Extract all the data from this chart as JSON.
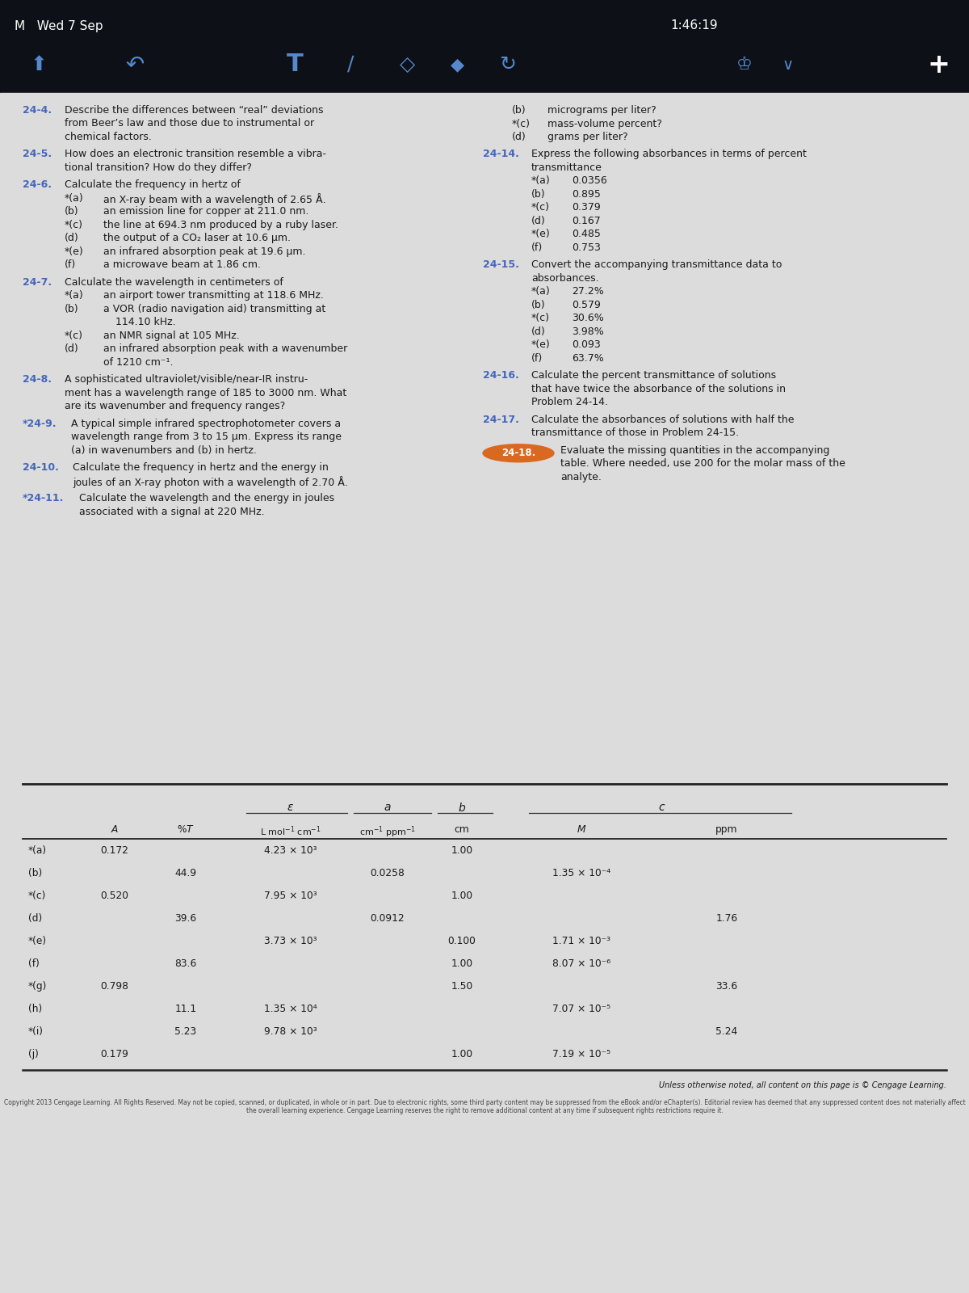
{
  "bg_top": "#0d1117",
  "bg_page": "#dcdcdc",
  "text_color": "#1a1a1a",
  "link_color": "#4466bb",
  "highlight_color": "#d96820",
  "table_rows": [
    {
      "label": "*(a)",
      "A": "0.172",
      "pT": "",
      "eps": "4.23 × 10³",
      "a": "",
      "b": "1.00",
      "M": "",
      "ppm": ""
    },
    {
      "label": "(b)",
      "A": "",
      "pT": "44.9",
      "eps": "",
      "a": "0.0258",
      "b": "",
      "M": "1.35 × 10⁻⁴",
      "ppm": ""
    },
    {
      "label": "*(c)",
      "A": "0.520",
      "pT": "",
      "eps": "7.95 × 10³",
      "a": "",
      "b": "1.00",
      "M": "",
      "ppm": ""
    },
    {
      "label": "(d)",
      "A": "",
      "pT": "39.6",
      "eps": "",
      "a": "0.0912",
      "b": "",
      "M": "",
      "ppm": "1.76"
    },
    {
      "label": "*(e)",
      "A": "",
      "pT": "",
      "eps": "3.73 × 10³",
      "a": "",
      "b": "0.100",
      "M": "1.71 × 10⁻³",
      "ppm": ""
    },
    {
      "label": "(f)",
      "A": "",
      "pT": "83.6",
      "eps": "",
      "a": "",
      "b": "1.00",
      "M": "8.07 × 10⁻⁶",
      "ppm": ""
    },
    {
      "label": "*(g)",
      "A": "0.798",
      "pT": "",
      "eps": "",
      "a": "",
      "b": "1.50",
      "M": "",
      "ppm": "33.6"
    },
    {
      "label": "(h)",
      "A": "",
      "pT": "11.1",
      "eps": "1.35 × 10⁴",
      "a": "",
      "b": "",
      "M": "7.07 × 10⁻⁵",
      "ppm": ""
    },
    {
      "label": "*(i)",
      "A": "",
      "pT": "5.23",
      "eps": "9.78 × 10³",
      "a": "",
      "b": "",
      "M": "",
      "ppm": "5.24"
    },
    {
      "label": "(j)",
      "A": "0.179",
      "pT": "",
      "eps": "",
      "a": "",
      "b": "1.00",
      "M": "7.19 × 10⁻⁵",
      "ppm": ""
    }
  ],
  "footer_text": "Unless otherwise noted, all content on this page is © Cengage Learning.",
  "copyright_text": "Copyright 2013 Cengage Learning. All Rights Reserved. May not be copied, scanned, or duplicated, in whole or in part. Due to electronic rights, some third party content may be suppressed from the eBook and/or eChapter(s). Editorial review has deemed that any suppressed content does not materially affect the overall learning experience. Cengage Learning reserves the right to remove additional content at any time if subsequent rights restrictions require it."
}
